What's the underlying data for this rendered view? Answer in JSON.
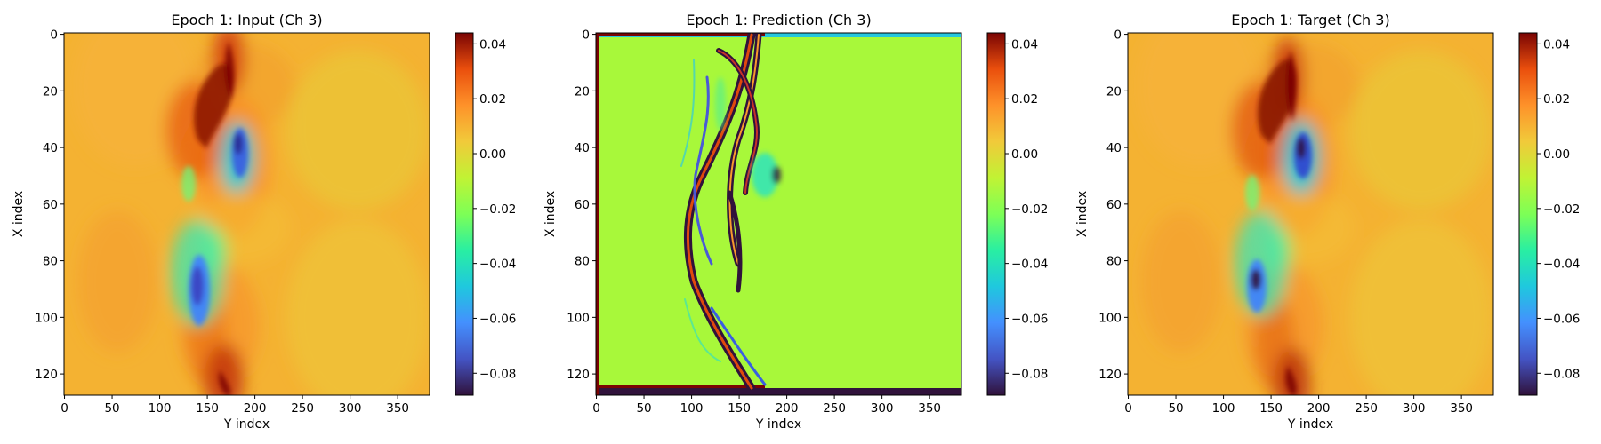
{
  "chart_data": [
    {
      "type": "heatmap",
      "title": "Epoch 1: Input (Ch 3)",
      "xlabel": "Y index",
      "ylabel": "X index",
      "xlim": [
        0,
        383
      ],
      "ylim": [
        127,
        0
      ],
      "xticks": [
        "0",
        "50",
        "100",
        "150",
        "200",
        "250",
        "300",
        "350"
      ],
      "yticks": [
        "0",
        "20",
        "40",
        "60",
        "80",
        "100",
        "120"
      ],
      "colorbar": {
        "colormap": "turbo",
        "range": [
          -0.088,
          0.044
        ],
        "ticks": [
          "0.04",
          "0.02",
          "0.00",
          "−0.02",
          "−0.04",
          "−0.06",
          "−0.08"
        ]
      }
    },
    {
      "type": "heatmap",
      "title": "Epoch 1: Prediction (Ch 3)",
      "xlabel": "Y index",
      "ylabel": "X index",
      "xlim": [
        0,
        383
      ],
      "ylim": [
        127,
        0
      ],
      "xticks": [
        "0",
        "50",
        "100",
        "150",
        "200",
        "250",
        "300",
        "350"
      ],
      "yticks": [
        "0",
        "20",
        "40",
        "60",
        "80",
        "100",
        "120"
      ],
      "colorbar": {
        "colormap": "turbo",
        "range": [
          -0.088,
          0.044
        ],
        "ticks": [
          "0.04",
          "0.02",
          "0.00",
          "−0.02",
          "−0.04",
          "−0.06",
          "−0.08"
        ]
      }
    },
    {
      "type": "heatmap",
      "title": "Epoch 1: Target (Ch 3)",
      "xlabel": "Y index",
      "ylabel": "X index",
      "xlim": [
        0,
        383
      ],
      "ylim": [
        127,
        0
      ],
      "xticks": [
        "0",
        "50",
        "100",
        "150",
        "200",
        "250",
        "300",
        "350"
      ],
      "yticks": [
        "0",
        "20",
        "40",
        "60",
        "80",
        "100",
        "120"
      ],
      "colorbar": {
        "colormap": "turbo",
        "range": [
          -0.088,
          0.044
        ],
        "ticks": [
          "0.04",
          "0.02",
          "0.00",
          "−0.02",
          "−0.04",
          "−0.06",
          "−0.08"
        ]
      }
    }
  ]
}
